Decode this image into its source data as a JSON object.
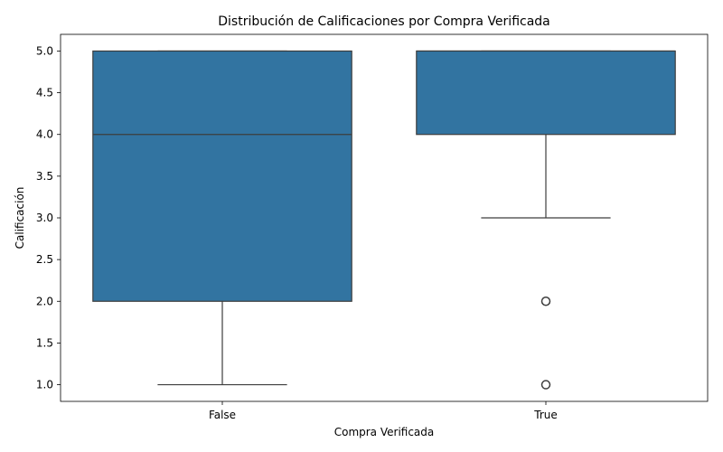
{
  "chart_data": {
    "type": "box",
    "title": "Distribución de Calificaciones por Compra Verificada",
    "xlabel": "Compra Verificada",
    "ylabel": "Calificación",
    "categories": [
      "False",
      "True"
    ],
    "boxes": [
      {
        "category": "False",
        "whisker_low": 1.0,
        "q1": 2.0,
        "median": 4.0,
        "q3": 5.0,
        "whisker_high": 5.0,
        "outliers": []
      },
      {
        "category": "True",
        "whisker_low": 3.0,
        "q1": 4.0,
        "median": 5.0,
        "q3": 5.0,
        "whisker_high": 5.0,
        "outliers": [
          1.0,
          2.0
        ]
      }
    ],
    "ylim": [
      0.8,
      5.2
    ],
    "yticks": [
      "1.0",
      "1.5",
      "2.0",
      "2.5",
      "3.0",
      "3.5",
      "4.0",
      "4.5",
      "5.0"
    ],
    "box_color": "#3274a1",
    "line_color": "#3d3d3d",
    "grid": false,
    "legend": "none"
  }
}
